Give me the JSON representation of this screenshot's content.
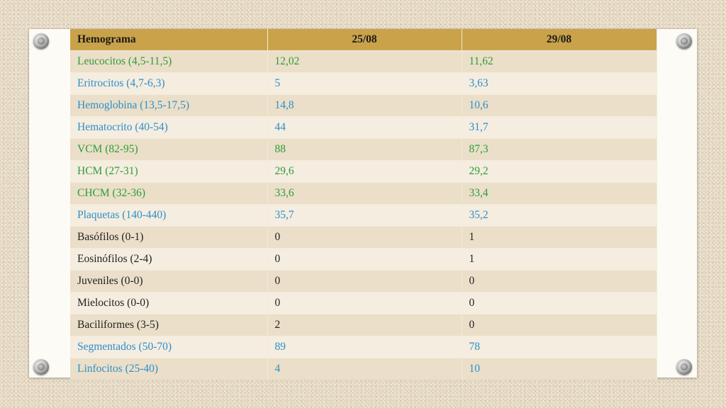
{
  "table": {
    "headers": [
      "Hemograma",
      "25/08",
      "29/08"
    ],
    "rows": [
      {
        "label": "Leucocitos (4,5-11,5)",
        "v1": "12,02",
        "v2": "11,62",
        "color": "green"
      },
      {
        "label": "Eritrocitos (4,7-6,3)",
        "v1": "5",
        "v2": "3,63",
        "color": "blue"
      },
      {
        "label": "Hemoglobina (13,5-17,5)",
        "v1": "14,8",
        "v2": "10,6",
        "color": "blue"
      },
      {
        "label": "Hematocrito (40-54)",
        "v1": "44",
        "v2": "31,7",
        "color": "blue"
      },
      {
        "label": "VCM (82-95)",
        "v1": "88",
        "v2": "87,3",
        "color": "green"
      },
      {
        "label": "HCM (27-31)",
        "v1": "29,6",
        "v2": "29,2",
        "color": "green"
      },
      {
        "label": "CHCM (32-36)",
        "v1": "33,6",
        "v2": "33,4",
        "color": "green"
      },
      {
        "label": "Plaquetas (140-440)",
        "v1": "35,7",
        "v2": "35,2",
        "color": "blue"
      },
      {
        "label": "Basófilos (0-1)",
        "v1": "0",
        "v2": "1",
        "color": "black"
      },
      {
        "label": "Eosinófilos (2-4)",
        "v1": "0",
        "v2": "1",
        "color": "black"
      },
      {
        "label": "Juveniles (0-0)",
        "v1": "0",
        "v2": "0",
        "color": "black"
      },
      {
        "label": "Mielocitos (0-0)",
        "v1": "0",
        "v2": "0",
        "color": "black"
      },
      {
        "label": "Baciliformes (3-5)",
        "v1": "2",
        "v2": "0",
        "color": "black"
      },
      {
        "label": "Segmentados (50-70)",
        "v1": "89",
        "v2": "78",
        "color": "blue"
      },
      {
        "label": "Linfocitos (25-40)",
        "v1": "4",
        "v2": "10",
        "color": "blue"
      }
    ]
  },
  "colors": {
    "header_bg": "#c9a24a",
    "green": "#2e9c3a",
    "blue": "#2c8fc9",
    "black": "#222222"
  }
}
